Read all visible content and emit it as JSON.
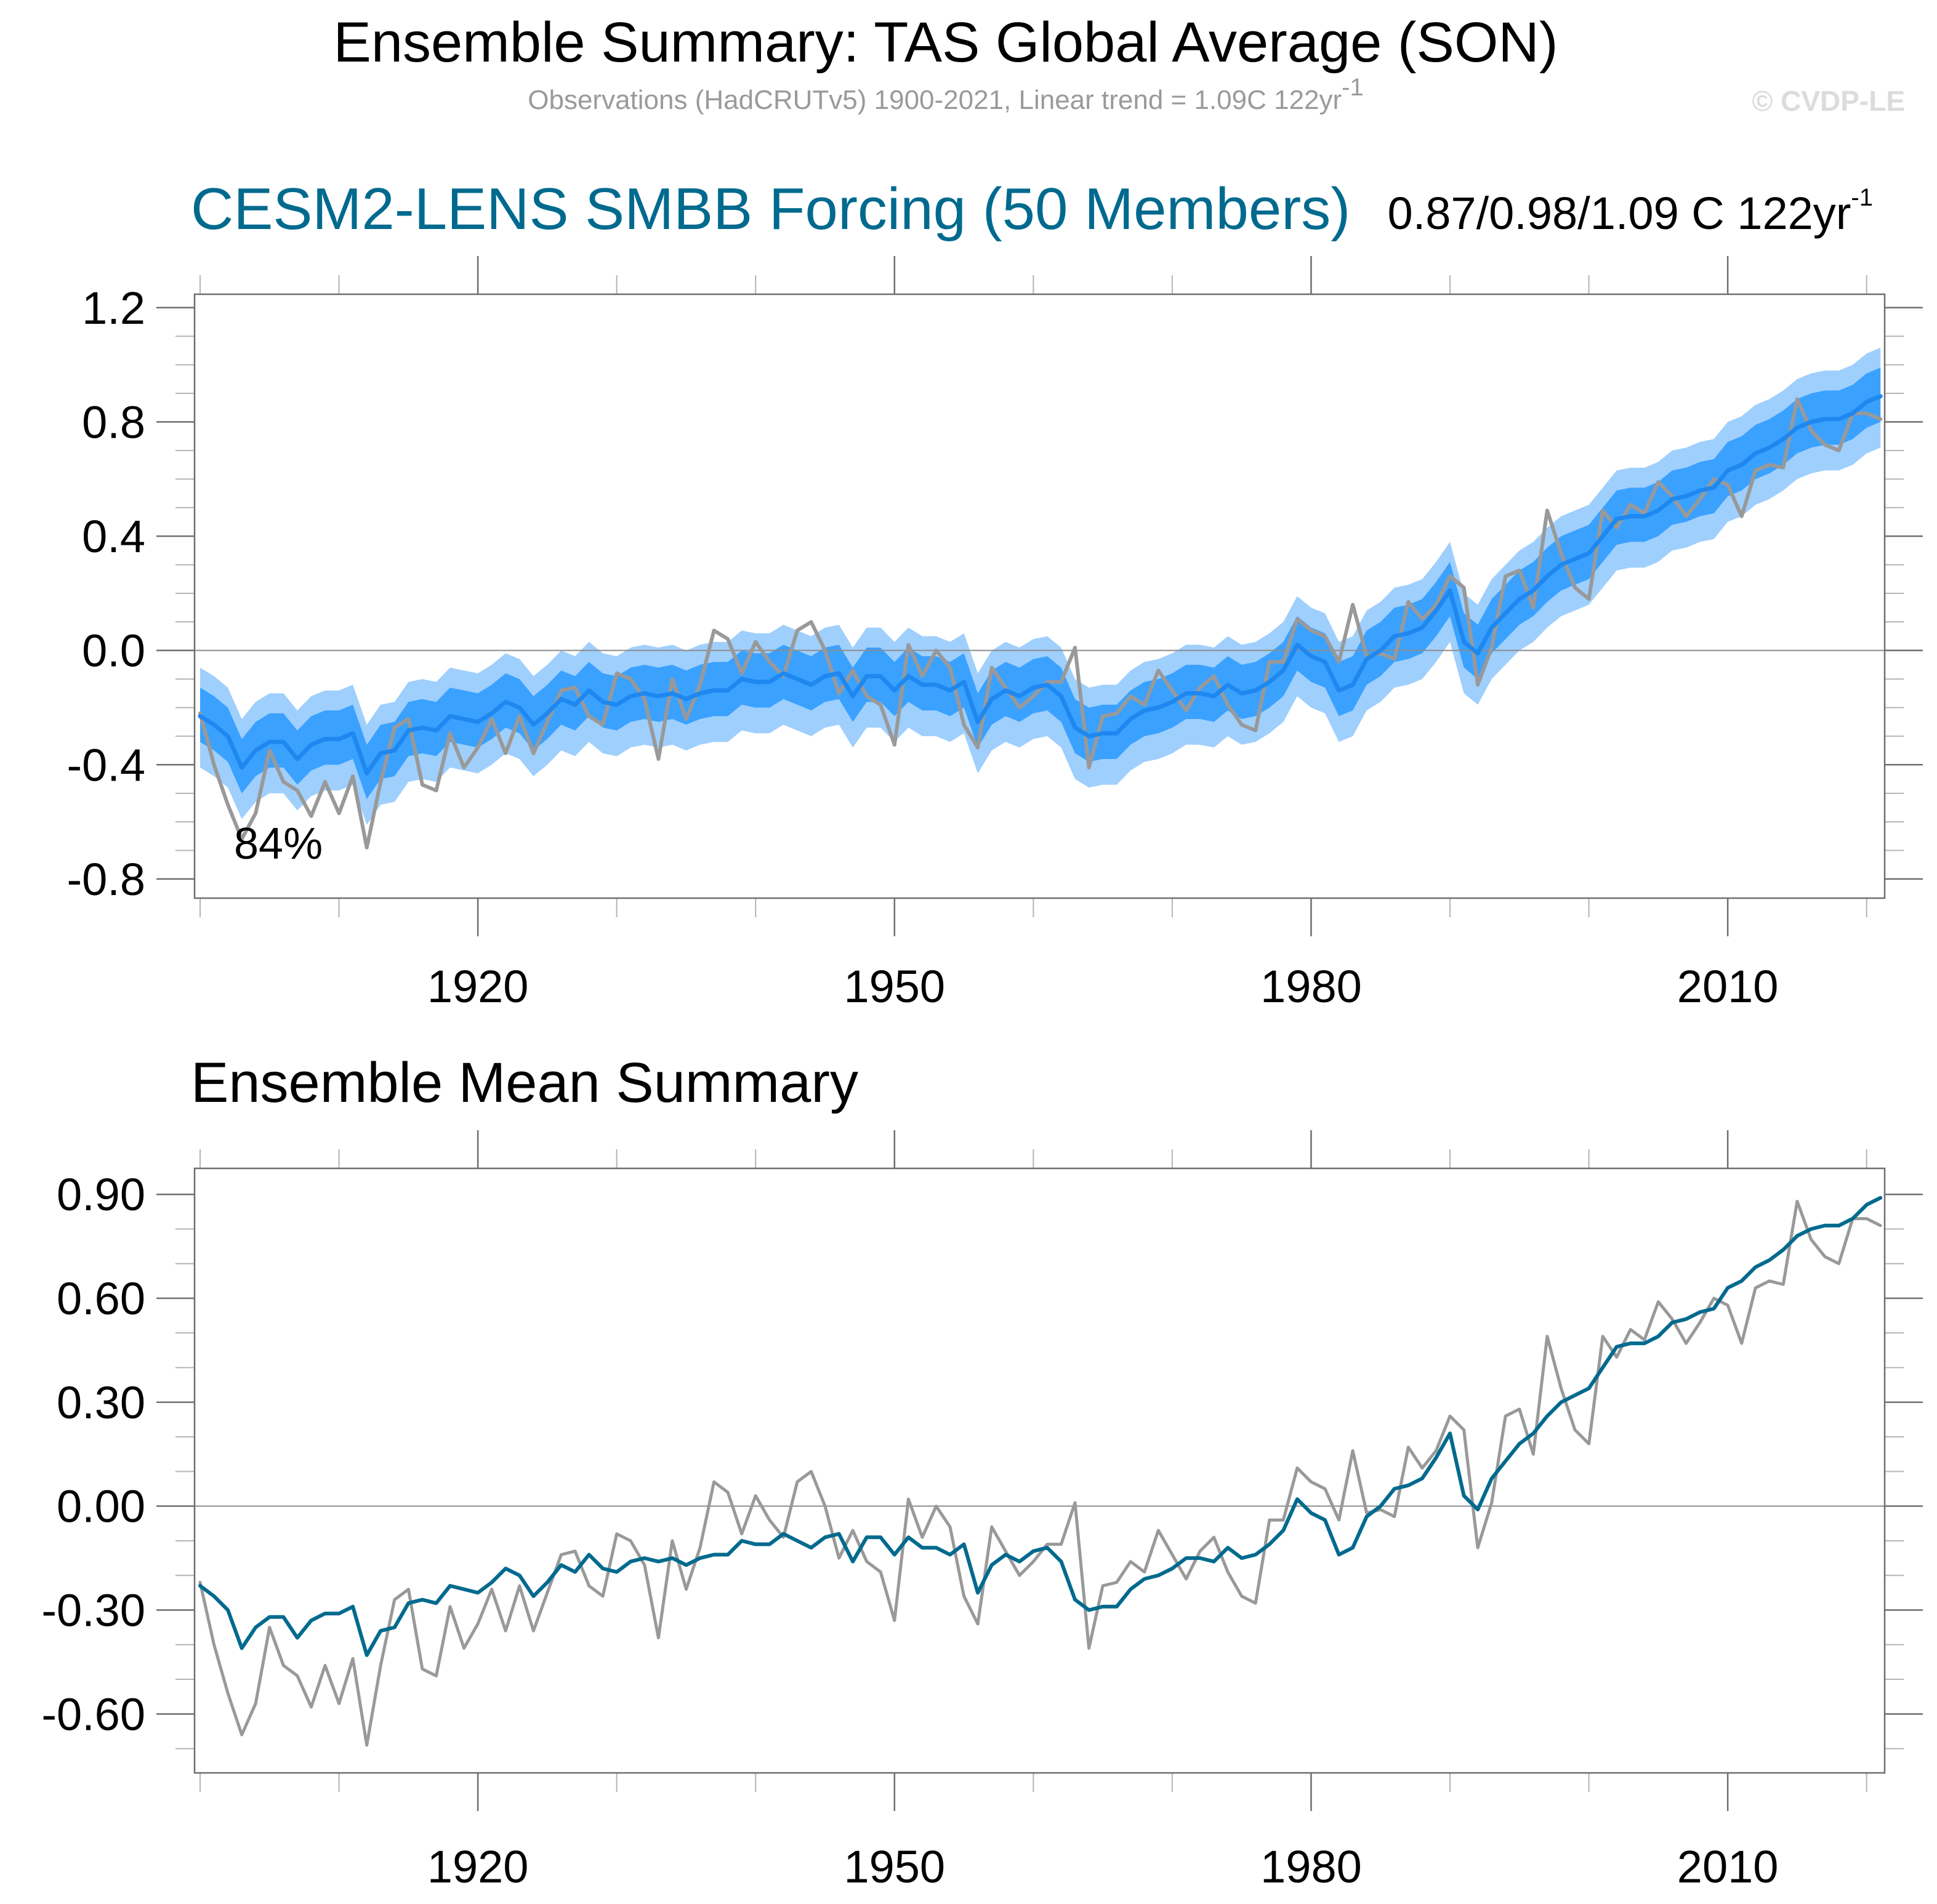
{
  "header": {
    "title": "Ensemble Summary: TAS Global Average (SON)",
    "subtitle": "Observations (HadCRUTv5) 1900-2021, Linear trend = 1.09C 122yr",
    "subtitle_sup": "-1",
    "copyright": "© CVDP-LE"
  },
  "colors": {
    "model_title": "#006a8e",
    "band_outer": "#9fcffd",
    "band_inner": "#3ba1ff",
    "ensemble_mean_top": "#1e88f0",
    "ensemble_mean_bottom": "#006a8e",
    "observations": "#999999",
    "axis": "#6e6e6e"
  },
  "chart_data": [
    {
      "type": "area",
      "id": "ensemble-summary",
      "title": "CESM2-LENS SMBB Forcing (50 Members)",
      "trend_label": "0.87/0.98/1.09 C 122yr",
      "trend_label_sup": "-1",
      "annotation": "84%",
      "xlabel": "",
      "ylabel": "",
      "xlim": [
        1899.6,
        2021.3
      ],
      "ylim": [
        -0.867,
        1.247
      ],
      "x_ticks_major": [
        1920,
        1950,
        1980,
        2010
      ],
      "x_ticks_minor_start": 1900,
      "x_ticks_minor_step": 10,
      "y_ticks": [
        -0.8,
        -0.4,
        0.0,
        0.4,
        0.8,
        1.2
      ],
      "y_tick_labels": [
        "-0.8",
        "-0.4",
        "0.0",
        "0.4",
        "0.8",
        "1.2"
      ],
      "y_minor_step": 0.1,
      "grid": false,
      "reference_line": 0.0,
      "bands": {
        "outer": {
          "name": "ensemble outer range",
          "offset_low": -0.18,
          "offset_high": 0.17
        },
        "inner": {
          "name": "ensemble inner range",
          "offset_low": -0.09,
          "offset_high": 0.1
        }
      },
      "series_refs": [
        "ensemble_mean",
        "observations"
      ]
    },
    {
      "type": "line",
      "id": "ensemble-mean-summary",
      "title": "Ensemble Mean Summary",
      "xlabel": "",
      "ylabel": "",
      "xlim": [
        1899.6,
        2021.3
      ],
      "ylim": [
        -0.77,
        0.975
      ],
      "x_ticks_major": [
        1920,
        1950,
        1980,
        2010
      ],
      "x_ticks_minor_start": 1900,
      "x_ticks_minor_step": 10,
      "y_ticks": [
        -0.6,
        -0.3,
        0.0,
        0.3,
        0.6,
        0.9
      ],
      "y_tick_labels": [
        "-0.60",
        "-0.30",
        "0.00",
        "0.30",
        "0.60",
        "0.90"
      ],
      "y_minor_step": 0.1,
      "grid": false,
      "reference_line": 0.0,
      "series_refs": [
        "ensemble_mean",
        "observations"
      ]
    }
  ],
  "series": {
    "x_start": 1900,
    "x_end": 2021,
    "ensemble_mean": [
      -0.23,
      -0.26,
      -0.3,
      -0.41,
      -0.35,
      -0.32,
      -0.32,
      -0.38,
      -0.33,
      -0.31,
      -0.31,
      -0.29,
      -0.43,
      -0.36,
      -0.35,
      -0.28,
      -0.27,
      -0.28,
      -0.23,
      -0.24,
      -0.25,
      -0.22,
      -0.18,
      -0.2,
      -0.26,
      -0.22,
      -0.17,
      -0.19,
      -0.14,
      -0.18,
      -0.19,
      -0.16,
      -0.15,
      -0.16,
      -0.15,
      -0.17,
      -0.15,
      -0.14,
      -0.14,
      -0.1,
      -0.11,
      -0.11,
      -0.08,
      -0.1,
      -0.12,
      -0.09,
      -0.08,
      -0.16,
      -0.09,
      -0.09,
      -0.14,
      -0.09,
      -0.12,
      -0.12,
      -0.14,
      -0.11,
      -0.25,
      -0.17,
      -0.14,
      -0.16,
      -0.13,
      -0.12,
      -0.16,
      -0.27,
      -0.3,
      -0.29,
      -0.29,
      -0.24,
      -0.21,
      -0.2,
      -0.18,
      -0.15,
      -0.15,
      -0.16,
      -0.12,
      -0.15,
      -0.14,
      -0.11,
      -0.07,
      0.02,
      -0.02,
      -0.04,
      -0.14,
      -0.12,
      -0.03,
      0.0,
      0.05,
      0.06,
      0.08,
      0.14,
      0.21,
      0.03,
      -0.01,
      0.08,
      0.13,
      0.18,
      0.21,
      0.26,
      0.3,
      0.32,
      0.34,
      0.4,
      0.46,
      0.47,
      0.47,
      0.49,
      0.53,
      0.54,
      0.56,
      0.57,
      0.63,
      0.65,
      0.69,
      0.71,
      0.74,
      0.78,
      0.8,
      0.81,
      0.81,
      0.83,
      0.87,
      0.89
    ],
    "observations": [
      -0.22,
      -0.4,
      -0.54,
      -0.66,
      -0.57,
      -0.35,
      -0.46,
      -0.49,
      -0.58,
      -0.46,
      -0.57,
      -0.44,
      -0.69,
      -0.46,
      -0.27,
      -0.24,
      -0.47,
      -0.49,
      -0.29,
      -0.41,
      -0.34,
      -0.24,
      -0.36,
      -0.23,
      -0.36,
      -0.25,
      -0.14,
      -0.13,
      -0.23,
      -0.26,
      -0.08,
      -0.1,
      -0.17,
      -0.38,
      -0.1,
      -0.24,
      -0.12,
      0.07,
      0.04,
      -0.08,
      0.03,
      -0.04,
      -0.09,
      0.07,
      0.1,
      0.0,
      -0.15,
      -0.07,
      -0.16,
      -0.19,
      -0.33,
      0.02,
      -0.09,
      0.0,
      -0.06,
      -0.26,
      -0.34,
      -0.06,
      -0.13,
      -0.2,
      -0.16,
      -0.11,
      -0.11,
      0.01,
      -0.41,
      -0.23,
      -0.22,
      -0.16,
      -0.19,
      -0.07,
      -0.14,
      -0.21,
      -0.13,
      -0.09,
      -0.19,
      -0.26,
      -0.28,
      -0.04,
      -0.04,
      0.11,
      0.07,
      0.05,
      -0.04,
      0.16,
      -0.02,
      -0.01,
      -0.03,
      0.17,
      0.11,
      0.16,
      0.26,
      0.22,
      -0.12,
      0.01,
      0.26,
      0.28,
      0.15,
      0.49,
      0.34,
      0.22,
      0.18,
      0.49,
      0.43,
      0.51,
      0.48,
      0.59,
      0.54,
      0.47,
      0.53,
      0.6,
      0.58,
      0.47,
      0.63,
      0.65,
      0.64,
      0.88,
      0.77,
      0.72,
      0.7,
      0.83,
      0.83,
      0.81
    ]
  },
  "panel2_title": "Ensemble Mean Summary"
}
